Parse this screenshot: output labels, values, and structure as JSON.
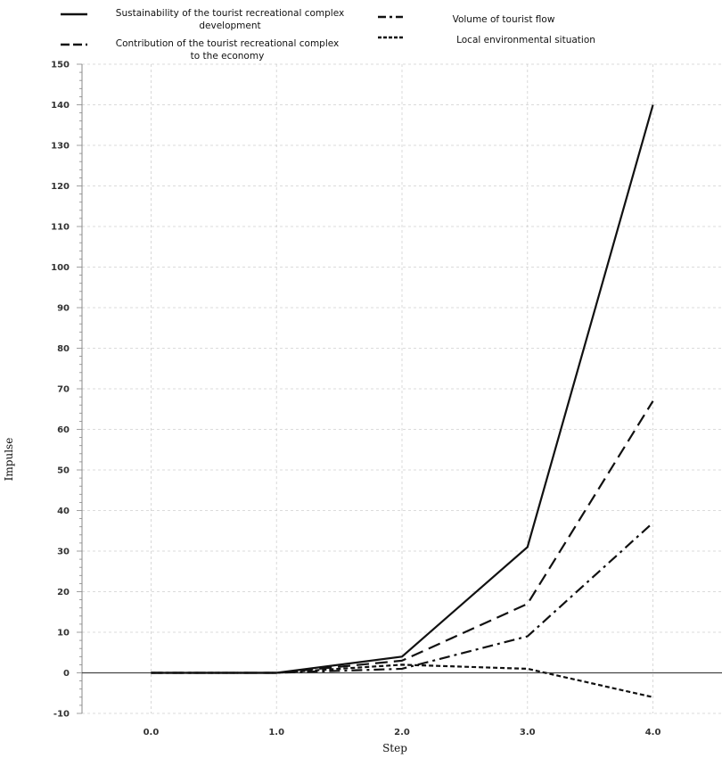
{
  "chart_data": {
    "type": "line",
    "title": "",
    "xlabel": "Step",
    "ylabel": "Impulse",
    "x": [
      0.0,
      1.0,
      2.0,
      3.0,
      4.0
    ],
    "x_tick_labels": [
      "0.0",
      "1.0",
      "2.0",
      "3.0",
      "4.0"
    ],
    "y_ticks": [
      -10,
      0,
      10,
      20,
      30,
      40,
      50,
      60,
      70,
      80,
      90,
      100,
      110,
      120,
      130,
      140,
      150
    ],
    "xlim": [
      -0.55,
      4.55
    ],
    "ylim": [
      -10,
      150
    ],
    "grid": true,
    "legend_position": "top",
    "series": [
      {
        "name": "Sustainability of the tourist recreational complex development",
        "values": [
          0,
          0,
          4,
          31,
          140
        ],
        "dash": "solid"
      },
      {
        "name": "Contribution of the tourist recreational complex to the economy",
        "values": [
          0,
          0,
          3,
          17,
          67
        ],
        "dash": "dashed"
      },
      {
        "name": "Volume of tourist flow",
        "values": [
          0,
          0,
          1,
          9,
          37
        ],
        "dash": "dashdot"
      },
      {
        "name": "Local environmental situation",
        "values": [
          0,
          0,
          2,
          1,
          -6
        ],
        "dash": "dotted"
      }
    ]
  },
  "legend": {
    "entries": [
      {
        "lines": [
          "Sustainability of the tourist recreational complex",
          "development"
        ],
        "dash": "solid"
      },
      {
        "lines": [
          "Volume of tourist flow"
        ],
        "dash": "dashdot"
      },
      {
        "lines": [
          "Contribution of the tourist recreational complex",
          "to the economy"
        ],
        "dash": "dashed"
      },
      {
        "lines": [
          "Local environmental situation"
        ],
        "dash": "dotted"
      }
    ]
  },
  "colors": {
    "line": "#111111",
    "grid": "#cfcfcf",
    "zero_line": "#444444",
    "background": "#ffffff"
  }
}
